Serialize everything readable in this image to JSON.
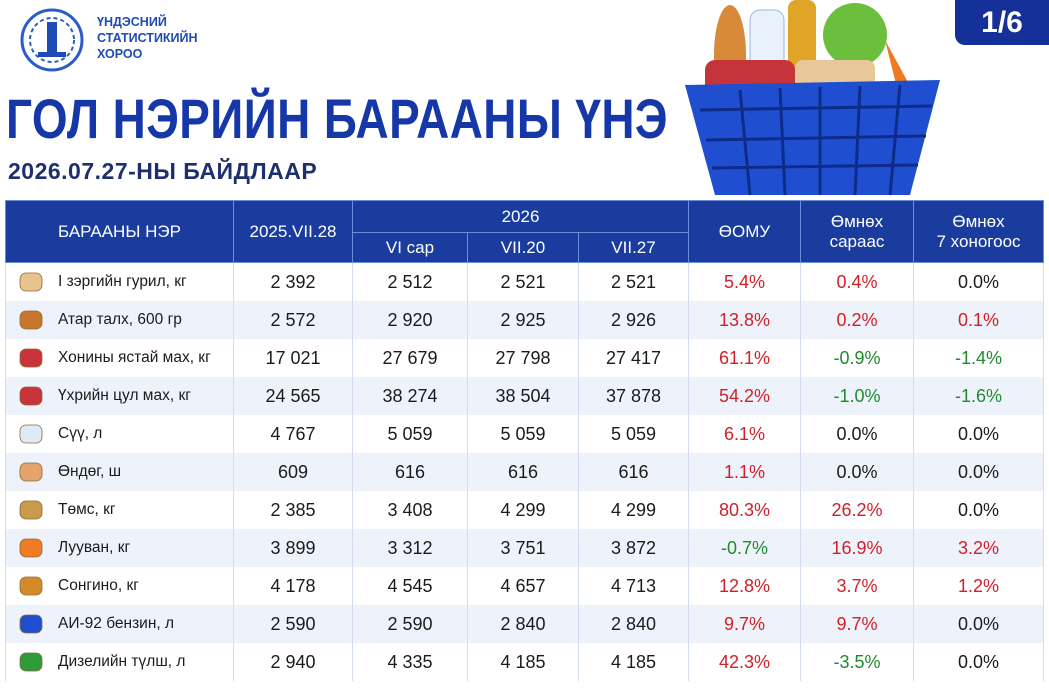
{
  "header": {
    "org": [
      "ҮНДЭСНИЙ",
      "СТАТИСТИКИЙН",
      "ХОРОО"
    ],
    "page": "1/6",
    "title": "ГОЛ НЭРИЙН БАРААНЫ ҮНЭ",
    "subtitle": "2026.07.27-НЫ БАЙДЛААР"
  },
  "table": {
    "header": {
      "name": "БАРААНЫ НЭР",
      "base": "2025.VII.28",
      "year": "2026",
      "periods": [
        "VI сар",
        "VII.20",
        "VII.27"
      ],
      "yoy": "ӨОМУ",
      "mom": [
        "Өмнөх",
        "сараас"
      ],
      "wow": [
        "Өмнөх",
        "7 хоногоос"
      ]
    },
    "rows": [
      [
        "I зэргийн гурил, кг",
        "2 392",
        "2 512",
        "2 521",
        "2 521",
        "5.4%",
        "0.4%",
        "0.0%"
      ],
      [
        "Атар талх, 600 гр",
        "2 572",
        "2 920",
        "2 925",
        "2 926",
        "13.8%",
        "0.2%",
        "0.1%"
      ],
      [
        "Хонины ястай мах, кг",
        "17 021",
        "27 679",
        "27 798",
        "27 417",
        "61.1%",
        "-0.9%",
        "-1.4%"
      ],
      [
        "Үхрийн цул мах, кг",
        "24 565",
        "38 274",
        "38 504",
        "37 878",
        "54.2%",
        "-1.0%",
        "-1.6%"
      ],
      [
        "Сүү, л",
        "4 767",
        "5 059",
        "5 059",
        "5 059",
        "6.1%",
        "0.0%",
        "0.0%"
      ],
      [
        "Өндөг, ш",
        "609",
        "616",
        "616",
        "616",
        "1.1%",
        "0.0%",
        "0.0%"
      ],
      [
        "Төмс, кг",
        "2 385",
        "3 408",
        "4 299",
        "4 299",
        "80.3%",
        "26.2%",
        "0.0%"
      ],
      [
        "Лууван, кг",
        "3 899",
        "3 312",
        "3 751",
        "3 872",
        "-0.7%",
        "16.9%",
        "3.2%"
      ],
      [
        "Сонгино, кг",
        "4 178",
        "4 545",
        "4 657",
        "4 713",
        "12.8%",
        "3.7%",
        "1.2%"
      ],
      [
        "АИ-92 бензин, л",
        "2 590",
        "2 590",
        "2 840",
        "2 840",
        "9.7%",
        "9.7%",
        "0.0%"
      ],
      [
        "Дизелийн түлш, л",
        "2 940",
        "4 335",
        "4 185",
        "4 185",
        "42.3%",
        "-3.5%",
        "0.0%"
      ]
    ]
  }
}
